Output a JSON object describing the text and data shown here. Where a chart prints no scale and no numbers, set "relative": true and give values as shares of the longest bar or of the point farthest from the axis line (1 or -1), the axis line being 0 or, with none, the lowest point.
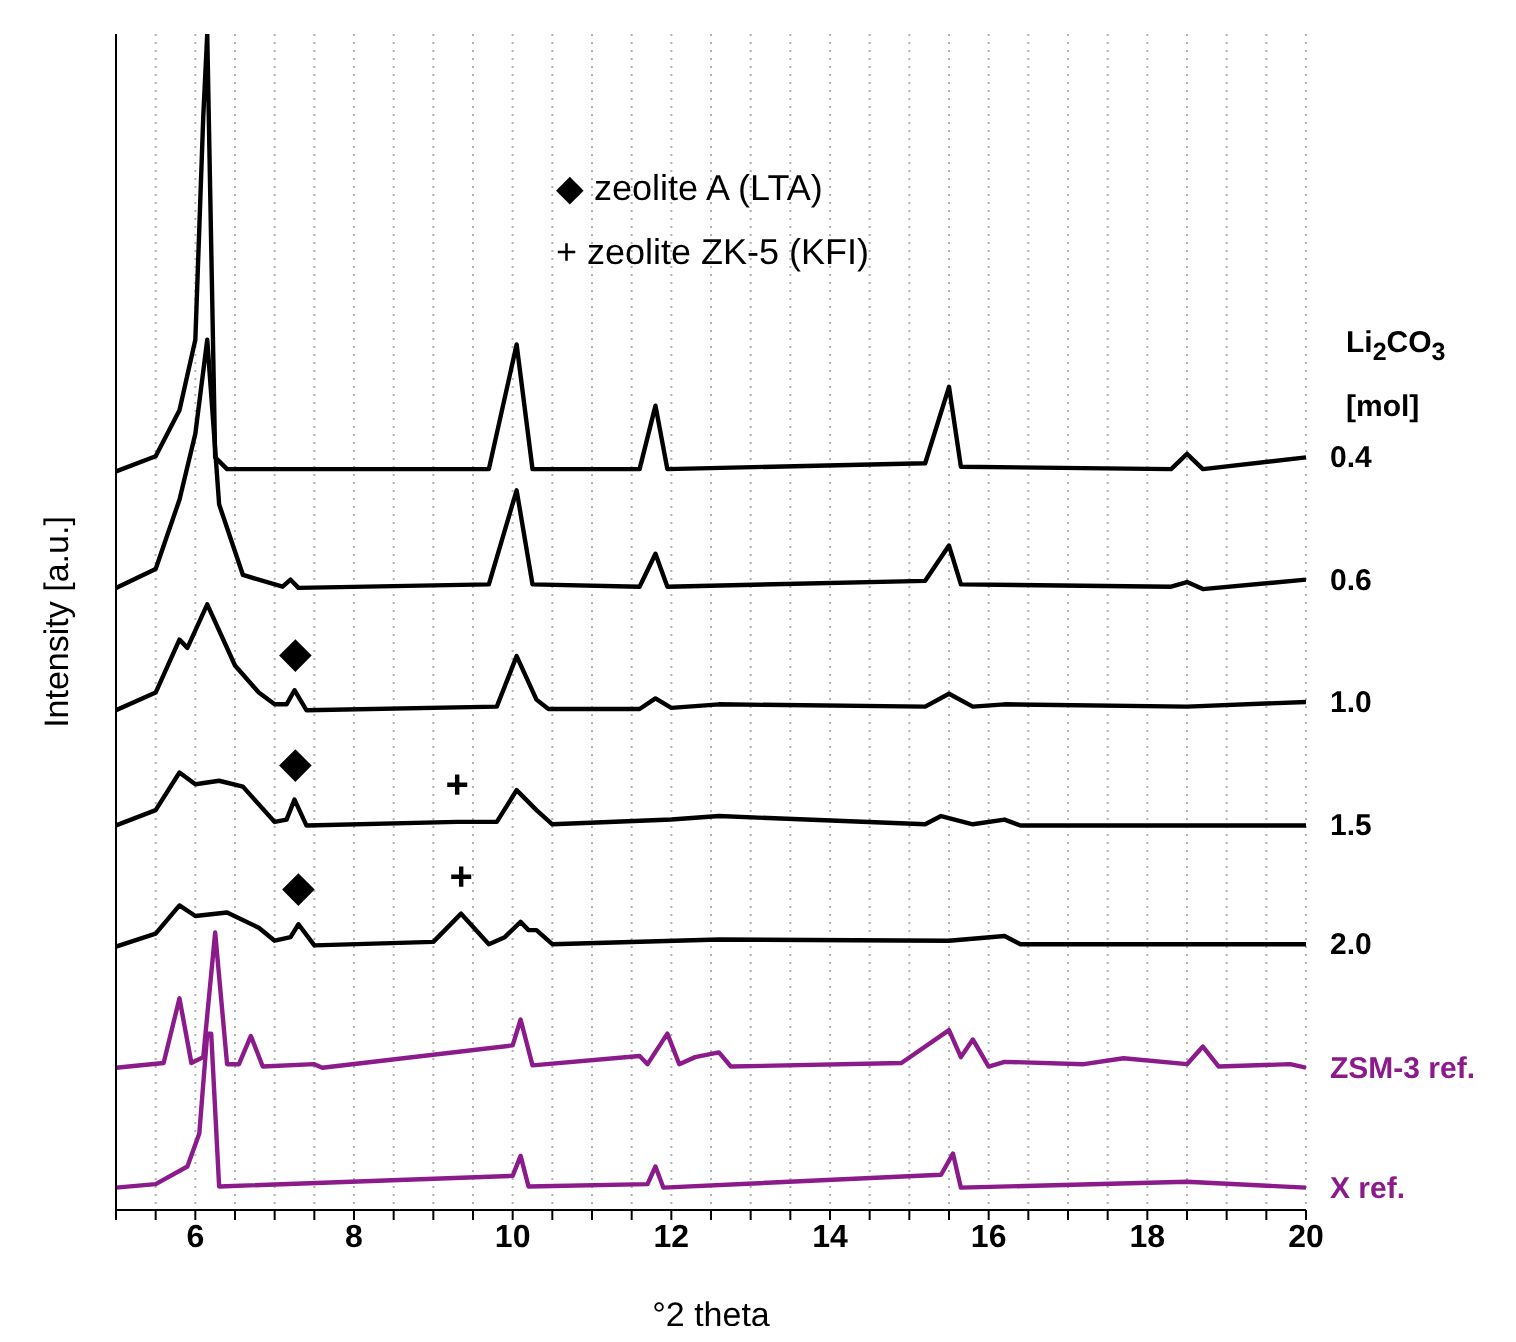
{
  "chart_data": {
    "type": "line",
    "relative": true,
    "xlabel": "°2 theta",
    "ylabel": "Intensity [a.u.]",
    "legend_title": "Li$_{2}$CO$_{3}$ [mol]",
    "legend": false,
    "grid": "x",
    "marker": "none",
    "line_style": "solid",
    "annotations": [
      "◆ zeolite A (LTA)",
      "+ zeolite ZK-5 (KFI)",
      {
        "text": "◆",
        "x": 7.25,
        "y": 0.442
      },
      {
        "text": "◆",
        "x": 7.25,
        "y": 0.349
      },
      {
        "text": "◆",
        "x": 7.3,
        "y": 0.243
      },
      {
        "text": "+",
        "x": 9.3,
        "y": 0.33
      },
      {
        "text": "+",
        "x": 9.35,
        "y": 0.252
      }
    ],
    "xlim": [
      5,
      20
    ],
    "xticks": [
      {
        "value": 5,
        "label": null
      },
      {
        "value": 5.5,
        "label": null
      },
      6,
      {
        "value": 6.5,
        "label": null
      },
      {
        "value": 7,
        "label": null
      },
      {
        "value": 7.5,
        "label": null
      },
      8,
      {
        "value": 8.5,
        "label": null
      },
      {
        "value": 9,
        "label": null
      },
      {
        "value": 9.5,
        "label": null
      },
      10,
      {
        "value": 10.5,
        "label": null
      },
      {
        "value": 11,
        "label": null
      },
      {
        "value": 11.5,
        "label": null
      },
      12,
      {
        "value": 12.5,
        "label": null
      },
      {
        "value": 13,
        "label": null
      },
      {
        "value": 13.5,
        "label": null
      },
      14,
      {
        "value": 14.5,
        "label": null
      },
      {
        "value": 15,
        "label": null
      },
      {
        "value": 15.5,
        "label": null
      },
      16,
      {
        "value": 16.5,
        "label": null
      },
      {
        "value": 17,
        "label": null
      },
      {
        "value": 17.5,
        "label": null
      },
      18,
      {
        "value": 18.5,
        "label": null
      },
      {
        "value": 19,
        "label": null
      },
      {
        "value": 19.5,
        "label": null
      },
      20
    ],
    "series": [
      {
        "name": "0.4",
        "color": "#000000",
        "x": [
          5,
          5.5,
          5.8,
          6.0,
          6.1,
          6.15,
          6.25,
          6.4,
          9.7,
          10.05,
          10.25,
          11.6,
          11.8,
          11.95,
          15.2,
          15.5,
          15.65,
          18.3,
          18.5,
          18.7,
          20
        ],
        "values": [
          0.628,
          0.641,
          0.68,
          0.74,
          0.93,
          1.0,
          0.64,
          0.63,
          0.63,
          0.736,
          0.63,
          0.63,
          0.684,
          0.63,
          0.635,
          0.7,
          0.632,
          0.63,
          0.643,
          0.63,
          0.64
        ]
      },
      {
        "name": "0.6",
        "color": "#000000",
        "x": [
          5,
          5.5,
          5.8,
          6.0,
          6.15,
          6.3,
          6.6,
          7.1,
          7.2,
          7.3,
          9.7,
          10.05,
          10.25,
          11.6,
          11.8,
          11.95,
          15.2,
          15.5,
          15.65,
          18.3,
          18.5,
          18.7,
          20
        ],
        "values": [
          0.529,
          0.545,
          0.604,
          0.66,
          0.74,
          0.6,
          0.54,
          0.53,
          0.536,
          0.529,
          0.532,
          0.612,
          0.532,
          0.53,
          0.558,
          0.53,
          0.535,
          0.565,
          0.532,
          0.53,
          0.534,
          0.528,
          0.536
        ]
      },
      {
        "name": "1.0",
        "color": "#000000",
        "x": [
          5,
          5.5,
          5.8,
          5.9,
          6.15,
          6.5,
          6.8,
          7.0,
          7.15,
          7.25,
          7.4,
          9.8,
          10.05,
          10.3,
          10.45,
          11.6,
          11.8,
          12.0,
          12.6,
          15.2,
          15.5,
          15.8,
          16.2,
          18.5,
          20
        ],
        "values": [
          0.425,
          0.44,
          0.485,
          0.478,
          0.515,
          0.463,
          0.44,
          0.43,
          0.43,
          0.442,
          0.425,
          0.428,
          0.471,
          0.434,
          0.426,
          0.426,
          0.435,
          0.427,
          0.43,
          0.428,
          0.439,
          0.428,
          0.43,
          0.428,
          0.432
        ]
      },
      {
        "name": "1.5",
        "color": "#000000",
        "x": [
          5,
          5.5,
          5.8,
          6.0,
          6.3,
          6.6,
          7.0,
          7.15,
          7.25,
          7.4,
          9.3,
          9.8,
          10.05,
          10.3,
          10.5,
          12.0,
          12.6,
          15.2,
          15.4,
          15.8,
          16.2,
          16.4,
          20
        ],
        "values": [
          0.327,
          0.34,
          0.372,
          0.362,
          0.365,
          0.36,
          0.33,
          0.332,
          0.349,
          0.327,
          0.33,
          0.33,
          0.357,
          0.34,
          0.328,
          0.332,
          0.335,
          0.328,
          0.335,
          0.328,
          0.332,
          0.327,
          0.327
        ]
      },
      {
        "name": "2.0",
        "color": "#000000",
        "x": [
          5,
          5.5,
          5.8,
          6.0,
          6.4,
          6.8,
          7.0,
          7.2,
          7.3,
          7.5,
          9.0,
          9.35,
          9.7,
          9.9,
          10.1,
          10.2,
          10.3,
          10.5,
          12.6,
          15.5,
          16.2,
          16.4,
          20
        ],
        "values": [
          0.224,
          0.235,
          0.259,
          0.25,
          0.253,
          0.24,
          0.229,
          0.232,
          0.243,
          0.225,
          0.228,
          0.252,
          0.226,
          0.232,
          0.245,
          0.238,
          0.238,
          0.226,
          0.23,
          0.229,
          0.233,
          0.226,
          0.226
        ]
      },
      {
        "name": "ZSM-3 ref.",
        "color": "#8b1a8b",
        "x": [
          5,
          5.6,
          5.8,
          5.95,
          6.1,
          6.25,
          6.4,
          6.55,
          6.7,
          6.85,
          7.5,
          7.6,
          10.0,
          10.1,
          10.25,
          11.6,
          11.7,
          11.95,
          12.1,
          12.3,
          12.6,
          12.75,
          14.9,
          15.5,
          15.65,
          15.8,
          16.0,
          16.2,
          17.2,
          17.7,
          18.5,
          18.7,
          18.9,
          19.8,
          20
        ],
        "values": [
          0.121,
          0.125,
          0.18,
          0.125,
          0.13,
          0.236,
          0.124,
          0.124,
          0.148,
          0.122,
          0.124,
          0.121,
          0.14,
          0.162,
          0.123,
          0.131,
          0.124,
          0.15,
          0.124,
          0.13,
          0.134,
          0.122,
          0.125,
          0.153,
          0.13,
          0.145,
          0.122,
          0.126,
          0.124,
          0.129,
          0.124,
          0.139,
          0.122,
          0.124,
          0.121
        ]
      },
      {
        "name": "X ref.",
        "color": "#8b1a8b",
        "x": [
          5,
          5.5,
          5.9,
          6.05,
          6.15,
          6.2,
          6.3,
          10.0,
          10.1,
          10.2,
          11.7,
          11.8,
          11.9,
          15.4,
          15.55,
          15.65,
          18.5,
          20
        ],
        "values": [
          0.019,
          0.022,
          0.037,
          0.065,
          0.15,
          0.15,
          0.02,
          0.029,
          0.046,
          0.02,
          0.022,
          0.037,
          0.019,
          0.03,
          0.048,
          0.019,
          0.024,
          0.019
        ]
      }
    ]
  }
}
